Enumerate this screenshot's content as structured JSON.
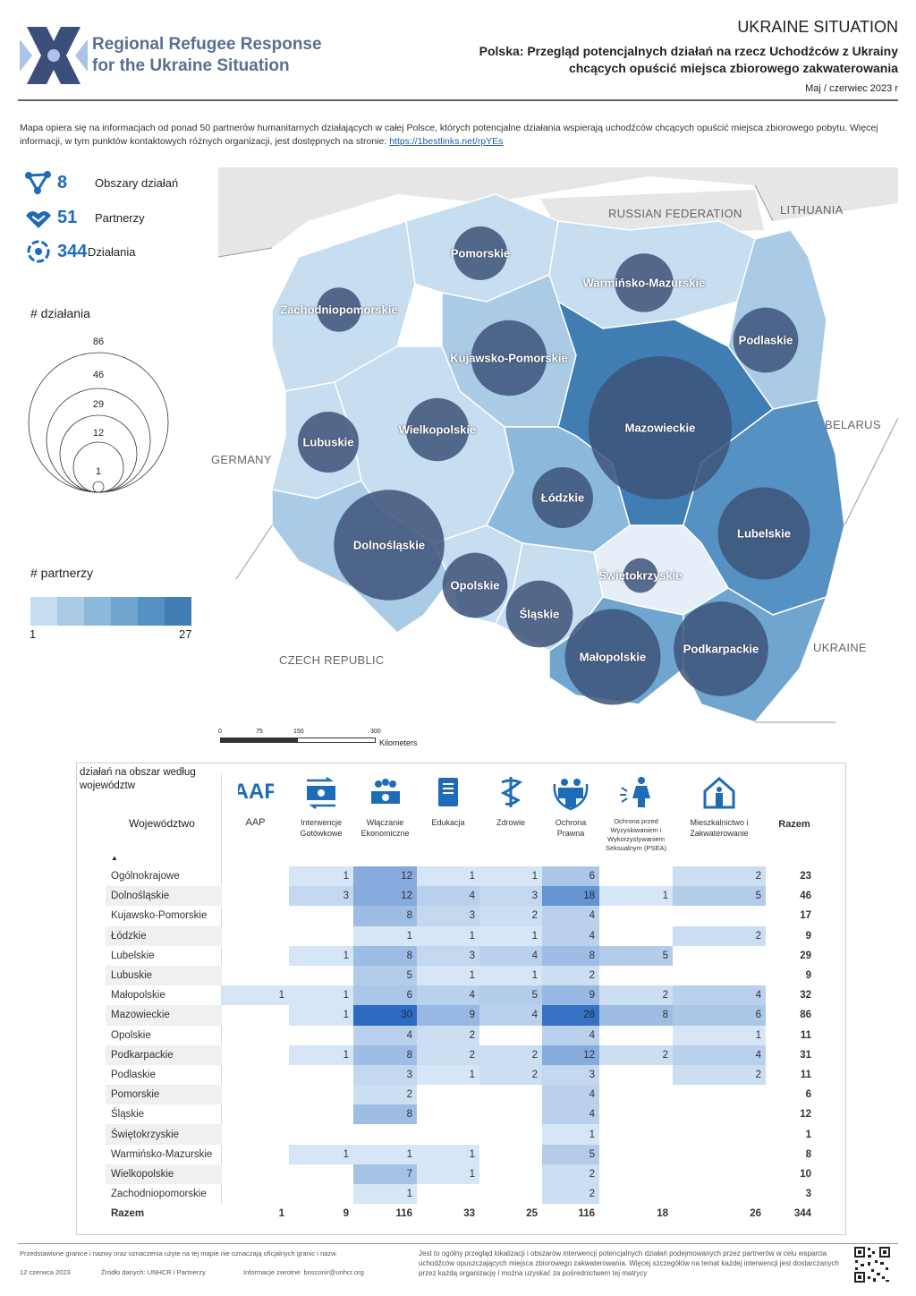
{
  "header": {
    "logo_line1": "Regional Refugee Response",
    "logo_line2": "for the Ukraine Situation",
    "title": "UKRAINE SITUATION",
    "subtitle_line1": "Polska: Przegląd potencjalnych działań na rzecz Uchodźców z Ukrainy",
    "subtitle_line2": "chcących opuścić miejsca zbiorowego zakwaterowania",
    "date": "Maj / czerwiec 2023 r"
  },
  "intro": {
    "text": "Mapa opiera się na informacjach od ponad 50 partnerów humanitarnych działających w całej Polsce, których potencjalne działania wspierają uchodźców chcących opuścić miejsca zbiorowego pobytu. Więcej informacji, w tym punktów kontaktowych różnych organizacji, jest dostępnych na stronie: ",
    "link": "https://1bestlinks.net/rpYEs"
  },
  "stats": [
    {
      "value": "8",
      "label": "Obszary działań",
      "icon": "share-nodes-icon"
    },
    {
      "value": "51",
      "label": "Partnerzy",
      "icon": "handshake-icon"
    },
    {
      "value": "344",
      "label": "Działania",
      "icon": "cycle-icon"
    }
  ],
  "legend": {
    "actions_title": "# działania",
    "circle_values": [
      "86",
      "46",
      "29",
      "12",
      "1"
    ],
    "partners_title": "# partnerzy",
    "partners_min": "1",
    "partners_max": "27",
    "colors": [
      "#c6def0",
      "#a9cbe6",
      "#8cb8db",
      "#6fa5cf",
      "#5591c2",
      "#3f7db2"
    ]
  },
  "map": {
    "countries": [
      "RUSSIAN FEDERATION",
      "LITHUANIA",
      "BELARUS",
      "GERMANY",
      "CZECH REPUBLIC",
      "UKRAINE"
    ],
    "scale": {
      "ticks": [
        "0",
        "75",
        "150",
        "300"
      ],
      "unit": "Kilometers"
    },
    "regions": [
      {
        "name": "Pomorskie",
        "actions": 6
      },
      {
        "name": "Warmińsko-Mazurskie",
        "actions": 8
      },
      {
        "name": "Zachodniopomorskie",
        "actions": 3
      },
      {
        "name": "Podlaskie",
        "actions": 11
      },
      {
        "name": "Kujawsko-Pomorskie",
        "actions": 17
      },
      {
        "name": "Mazowieckie",
        "actions": 86
      },
      {
        "name": "Lubuskie",
        "actions": 9
      },
      {
        "name": "Wielkopolskie",
        "actions": 10
      },
      {
        "name": "Łódzkie",
        "actions": 9
      },
      {
        "name": "Lubelskie",
        "actions": 29
      },
      {
        "name": "Dolnośląskie",
        "actions": 46
      },
      {
        "name": "Opolskie",
        "actions": 11
      },
      {
        "name": "Świętokrzyskie",
        "actions": 1
      },
      {
        "name": "Śląskie",
        "actions": 12
      },
      {
        "name": "Małopolskie",
        "actions": 32
      },
      {
        "name": "Podkarpackie",
        "actions": 31
      }
    ]
  },
  "table": {
    "caption_line1": "działań na obszar według",
    "caption_line2": "województw",
    "region_header": "Województwo",
    "columns": [
      {
        "label": "AAP",
        "icon": "aap-icon"
      },
      {
        "label": "Interwencje Gotówkowe",
        "icon": "cash-transfer-icon"
      },
      {
        "label": "Włączanie Ekonomiczne",
        "icon": "economic-inclusion-icon"
      },
      {
        "label": "Edukacja",
        "icon": "education-book-icon"
      },
      {
        "label": "Zdrowie",
        "icon": "health-caduceus-icon"
      },
      {
        "label": "Ochrona Prawna",
        "icon": "protection-family-icon"
      },
      {
        "label": "Ochrona przed Wyzyskiwaniem i Wykorzystywaniem Seksualnym (PSEA)",
        "icon": "psea-icon"
      },
      {
        "label": "Mieszkalnictwo i Zakwaterowanie",
        "icon": "shelter-house-icon"
      }
    ],
    "total_header": "Razem",
    "rows": [
      {
        "name": "Ogólnokrajowe",
        "v": [
          null,
          1,
          12,
          1,
          1,
          6,
          null,
          2
        ],
        "total": 23
      },
      {
        "name": "Dolnośląskie",
        "v": [
          null,
          3,
          12,
          4,
          3,
          18,
          1,
          5
        ],
        "total": 46
      },
      {
        "name": "Kujawsko-Pomorskie",
        "v": [
          null,
          null,
          8,
          3,
          2,
          4,
          null,
          null
        ],
        "total": 17
      },
      {
        "name": "Łódzkie",
        "v": [
          null,
          null,
          1,
          1,
          1,
          4,
          null,
          2
        ],
        "total": 9
      },
      {
        "name": "Lubelskie",
        "v": [
          null,
          1,
          8,
          3,
          4,
          8,
          5,
          null
        ],
        "total": 29
      },
      {
        "name": "Lubuskie",
        "v": [
          null,
          null,
          5,
          1,
          1,
          2,
          null,
          null
        ],
        "total": 9
      },
      {
        "name": "Małopolskie",
        "v": [
          1,
          1,
          6,
          4,
          5,
          9,
          2,
          4
        ],
        "total": 32
      },
      {
        "name": "Mazowieckie",
        "v": [
          null,
          1,
          30,
          9,
          4,
          28,
          8,
          6
        ],
        "total": 86
      },
      {
        "name": "Opolskie",
        "v": [
          null,
          null,
          4,
          2,
          null,
          4,
          null,
          1
        ],
        "total": 11
      },
      {
        "name": "Podkarpackie",
        "v": [
          null,
          1,
          8,
          2,
          2,
          12,
          2,
          4
        ],
        "total": 31
      },
      {
        "name": "Podlaskie",
        "v": [
          null,
          null,
          3,
          1,
          2,
          3,
          null,
          2
        ],
        "total": 11
      },
      {
        "name": "Pomorskie",
        "v": [
          null,
          null,
          2,
          null,
          null,
          4,
          null,
          null
        ],
        "total": 6
      },
      {
        "name": "Śląskie",
        "v": [
          null,
          null,
          8,
          null,
          null,
          4,
          null,
          null
        ],
        "total": 12
      },
      {
        "name": "Świętokrzyskie",
        "v": [
          null,
          null,
          null,
          null,
          null,
          1,
          null,
          null
        ],
        "total": 1
      },
      {
        "name": "Warmińsko-Mazurskie",
        "v": [
          null,
          1,
          1,
          1,
          null,
          5,
          null,
          null
        ],
        "total": 8
      },
      {
        "name": "Wielkopolskie",
        "v": [
          null,
          null,
          7,
          1,
          null,
          2,
          null,
          null
        ],
        "total": 10
      },
      {
        "name": "Zachodniopomorskie",
        "v": [
          null,
          null,
          1,
          null,
          null,
          2,
          null,
          null
        ],
        "total": 3
      }
    ],
    "totals_label": "Razem",
    "totals": [
      1,
      9,
      116,
      33,
      25,
      116,
      18,
      26
    ],
    "grand_total": 344
  },
  "footer": {
    "disclaimer": "Przedstawione granice i nazwy oraz oznaczenia użyte na tej mapie nie oznaczają oficjalnych granic i nazw.",
    "date": "12 czerwca 2023",
    "source": "Źródło danych: UNHCR i Partnerzy",
    "feedback": "Informacje zwrotne: bosconir@unhcr.org",
    "right_text": "Jest to ogólny przegląd lokalizacji i obszarów interwencji potencjalnych działań podejmowanych przez partnerów w celu wsparcia uchodźców opuszczających miejsca zbiorowego zakwaterowania. Więcej szczegółów na temat każdej interwencji jest dostarczanych przez każdą organizację i można uzyskać za pośrednictwem tej matrycy"
  }
}
